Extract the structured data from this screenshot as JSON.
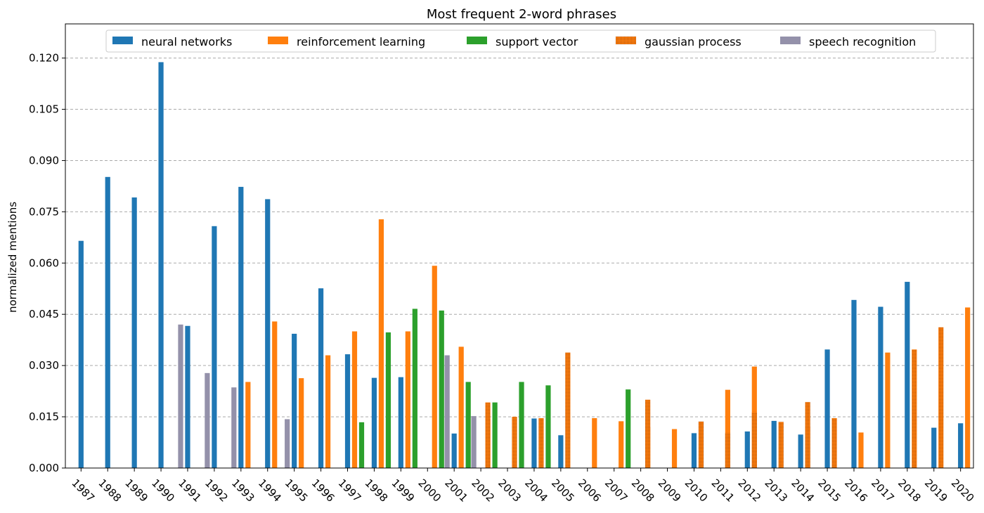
{
  "chart_data": {
    "type": "bar",
    "title": "Most frequent 2-word phrases",
    "xlabel": "",
    "ylabel": "normalized mentions",
    "ylim": [
      0,
      0.13
    ],
    "yticks": [
      "0.000",
      "0.015",
      "0.030",
      "0.045",
      "0.060",
      "0.075",
      "0.090",
      "0.105",
      "0.120"
    ],
    "grid": "y-dashed",
    "legend_position": "top-center",
    "categories": [
      "1987",
      "1988",
      "1989",
      "1990",
      "1991",
      "1992",
      "1993",
      "1994",
      "1995",
      "1996",
      "1997",
      "1998",
      "1999",
      "2000",
      "2001",
      "2002",
      "2003",
      "2004",
      "2005",
      "2006",
      "2007",
      "2008",
      "2009",
      "2010",
      "2011",
      "2012",
      "2013",
      "2014",
      "2015",
      "2016",
      "2017",
      "2018",
      "2019",
      "2020"
    ],
    "series": [
      {
        "name": "neural networks",
        "color": "#1f77b4",
        "values": [
          0.0665,
          0.0852,
          0.0792,
          0.1188,
          0.0416,
          0.0708,
          0.0823,
          0.0787,
          0.0393,
          0.0526,
          0.0333,
          0.0264,
          0.0266,
          null,
          0.0101,
          null,
          null,
          0.0145,
          0.0096,
          null,
          null,
          null,
          null,
          0.0102,
          null,
          0.0107,
          0.0138,
          0.0098,
          0.0347,
          0.0492,
          0.0472,
          0.0545,
          0.0118,
          0.0131
        ]
      },
      {
        "name": "reinforcement learning",
        "color": "#ff7f0e",
        "values": [
          null,
          null,
          null,
          null,
          null,
          null,
          0.0252,
          0.0429,
          0.0263,
          0.033,
          0.04,
          0.0728,
          0.04,
          0.0592,
          0.0355,
          0.0144,
          null,
          null,
          null,
          0.0146,
          0.0137,
          0.012,
          0.0114,
          null,
          0.0229,
          0.0297,
          null,
          0.0121,
          null,
          0.0104,
          0.0338,
          null,
          null,
          0.047
        ]
      },
      {
        "name": "support vector",
        "color": "#2ca02c",
        "values": [
          null,
          null,
          null,
          null,
          null,
          null,
          null,
          null,
          null,
          null,
          0.0134,
          0.0397,
          0.0466,
          0.0461,
          0.0252,
          0.0192,
          0.0252,
          0.0242,
          null,
          null,
          0.023,
          null,
          null,
          null,
          null,
          null,
          null,
          null,
          null,
          null,
          null,
          null,
          null,
          null
        ]
      },
      {
        "name": "gaussian process",
        "color": "#ff7f0e",
        "values": [
          null,
          null,
          null,
          null,
          null,
          null,
          null,
          null,
          null,
          null,
          null,
          null,
          null,
          null,
          null,
          0.0192,
          0.015,
          0.0146,
          0.0338,
          null,
          null,
          0.02,
          null,
          0.0136,
          0.0102,
          0.0163,
          0.0135,
          0.0193,
          0.0146,
          null,
          null,
          0.0347,
          0.0412,
          null
        ]
      },
      {
        "name": "speech recognition",
        "color": "#9491aa",
        "values": [
          null,
          null,
          null,
          null,
          0.042,
          0.0278,
          0.0236,
          null,
          0.0143,
          null,
          null,
          null,
          null,
          null,
          0.033,
          0.0152,
          null,
          null,
          null,
          null,
          null,
          null,
          null,
          null,
          null,
          null,
          null,
          null,
          null,
          null,
          null,
          null,
          null,
          null
        ]
      }
    ]
  }
}
